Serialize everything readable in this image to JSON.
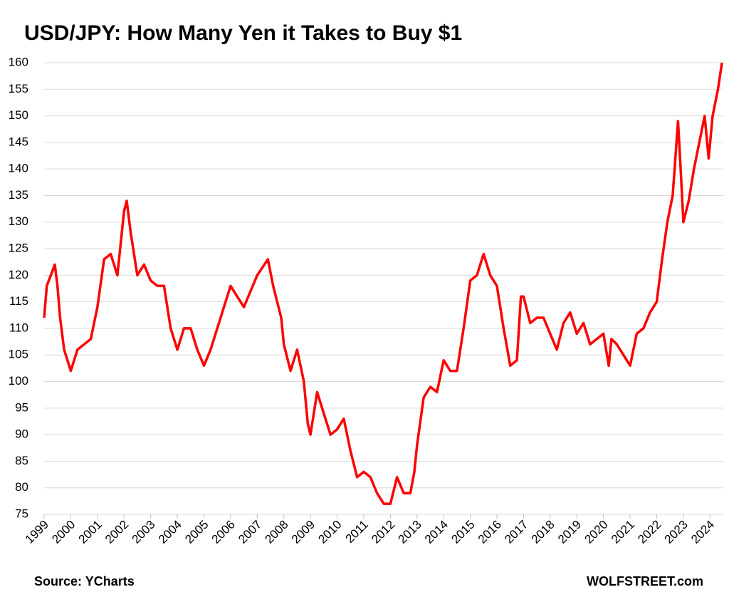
{
  "chart_data": {
    "type": "line",
    "title": "USD/JPY: How Many Yen it Takes to Buy $1",
    "source": "Source: YCharts",
    "credit": "WOLFSTREET.com",
    "color": "#ff0000",
    "grid": true,
    "xlim": [
      1999,
      2024.5
    ],
    "xticks": [
      1999,
      2000,
      2001,
      2002,
      2003,
      2004,
      2005,
      2006,
      2007,
      2008,
      2009,
      2010,
      2011,
      2012,
      2013,
      2014,
      2015,
      2016,
      2017,
      2018,
      2019,
      2020,
      2021,
      2022,
      2023,
      2024
    ],
    "ylim": [
      75,
      160
    ],
    "yticks": [
      75,
      80,
      85,
      90,
      95,
      100,
      105,
      110,
      115,
      120,
      125,
      130,
      135,
      140,
      145,
      150,
      155,
      160
    ],
    "x": [
      1999.0,
      1999.1,
      1999.25,
      1999.4,
      1999.5,
      1999.6,
      1999.75,
      2000.0,
      2000.25,
      2000.5,
      2000.75,
      2001.0,
      2001.25,
      2001.5,
      2001.75,
      2002.0,
      2002.1,
      2002.25,
      2002.5,
      2002.75,
      2003.0,
      2003.25,
      2003.5,
      2003.75,
      2004.0,
      2004.25,
      2004.5,
      2004.75,
      2005.0,
      2005.25,
      2005.5,
      2005.75,
      2006.0,
      2006.25,
      2006.5,
      2006.75,
      2007.0,
      2007.4,
      2007.6,
      2007.9,
      2008.0,
      2008.25,
      2008.5,
      2008.75,
      2008.9,
      2009.0,
      2009.25,
      2009.5,
      2009.75,
      2010.0,
      2010.25,
      2010.5,
      2010.75,
      2011.0,
      2011.25,
      2011.5,
      2011.75,
      2012.0,
      2012.25,
      2012.5,
      2012.75,
      2012.9,
      2013.0,
      2013.25,
      2013.5,
      2013.75,
      2014.0,
      2014.25,
      2014.5,
      2014.75,
      2015.0,
      2015.25,
      2015.5,
      2015.75,
      2016.0,
      2016.25,
      2016.5,
      2016.75,
      2016.9,
      2017.0,
      2017.25,
      2017.5,
      2017.75,
      2018.0,
      2018.25,
      2018.5,
      2018.75,
      2019.0,
      2019.25,
      2019.5,
      2019.75,
      2020.0,
      2020.2,
      2020.3,
      2020.5,
      2020.75,
      2021.0,
      2021.25,
      2021.5,
      2021.75,
      2022.0,
      2022.2,
      2022.4,
      2022.6,
      2022.8,
      2022.9,
      2023.0,
      2023.2,
      2023.4,
      2023.6,
      2023.8,
      2023.95,
      2024.1,
      2024.3,
      2024.45
    ],
    "values": [
      112,
      118,
      120,
      122,
      118,
      112,
      106,
      102,
      106,
      107,
      108,
      114,
      123,
      124,
      120,
      132,
      134,
      128,
      120,
      122,
      119,
      118,
      118,
      110,
      106,
      110,
      110,
      106,
      103,
      106,
      110,
      114,
      118,
      116,
      114,
      117,
      120,
      123,
      118,
      112,
      107,
      102,
      106,
      100,
      92,
      90,
      98,
      94,
      90,
      91,
      93,
      87,
      82,
      83,
      82,
      79,
      77,
      77,
      82,
      79,
      79,
      83,
      88,
      97,
      99,
      98,
      104,
      102,
      102,
      110,
      119,
      120,
      124,
      120,
      118,
      110,
      103,
      104,
      116,
      116,
      111,
      112,
      112,
      109,
      106,
      111,
      113,
      109,
      111,
      107,
      108,
      109,
      103,
      108,
      107,
      105,
      103,
      109,
      110,
      113,
      115,
      123,
      130,
      135,
      149,
      140,
      130,
      134,
      140,
      145,
      150,
      142,
      150,
      155,
      160
    ]
  }
}
